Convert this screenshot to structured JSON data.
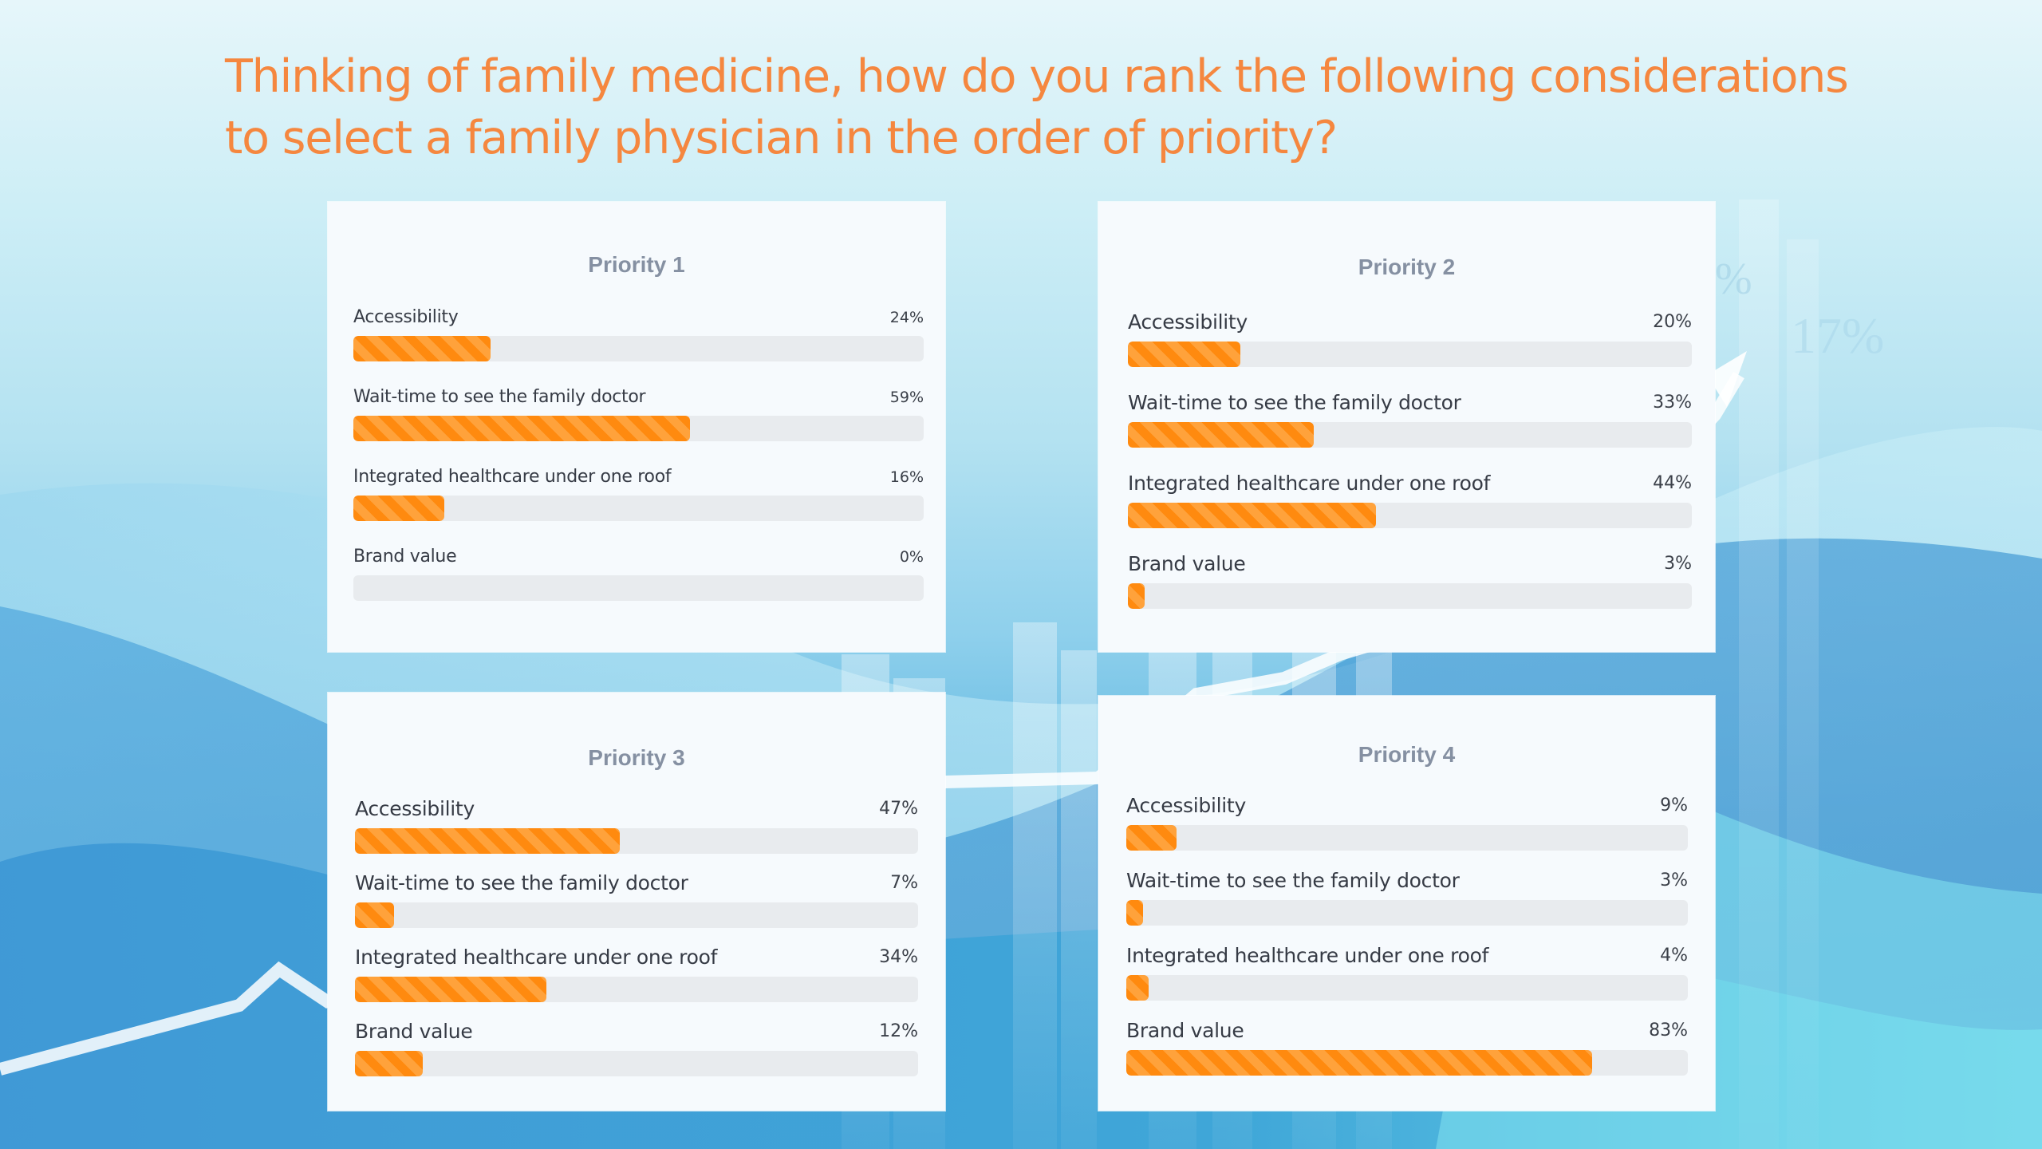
{
  "title": {
    "line1": "Thinking of family medicine, how do you rank the following considerations",
    "line2": "to select a family physician in the order of priority?"
  },
  "colors": {
    "title": "#f5873f",
    "bar_fill": "#ff8a0f",
    "bar_track": "#e8ebee",
    "card_bg": "#f6fafd",
    "card_heading": "#8590a2",
    "label_text": "#363b45"
  },
  "background": {
    "decorative_text": [
      "%",
      "17%"
    ]
  },
  "chart_data": [
    {
      "type": "bar",
      "orientation": "horizontal",
      "title": "Priority 1",
      "categories": [
        "Accessibility",
        "Wait-time to see the family doctor",
        "Integrated healthcare under one roof",
        "Brand value"
      ],
      "values": [
        24,
        59,
        16,
        0
      ],
      "value_labels": [
        "24%",
        "59%",
        "16%",
        "0%"
      ],
      "xlim": [
        0,
        100
      ],
      "unit": "%"
    },
    {
      "type": "bar",
      "orientation": "horizontal",
      "title": "Priority 2",
      "categories": [
        "Accessibility",
        "Wait-time to see the family doctor",
        "Integrated healthcare under one roof",
        "Brand value"
      ],
      "values": [
        20,
        33,
        44,
        3
      ],
      "value_labels": [
        "20%",
        "33%",
        "44%",
        "3%"
      ],
      "xlim": [
        0,
        100
      ],
      "unit": "%"
    },
    {
      "type": "bar",
      "orientation": "horizontal",
      "title": "Priority 3",
      "categories": [
        "Accessibility",
        "Wait-time to see the family doctor",
        "Integrated healthcare under one roof",
        "Brand value"
      ],
      "values": [
        47,
        7,
        34,
        12
      ],
      "value_labels": [
        "47%",
        "7%",
        "34%",
        "12%"
      ],
      "xlim": [
        0,
        100
      ],
      "unit": "%"
    },
    {
      "type": "bar",
      "orientation": "horizontal",
      "title": "Priority 4",
      "categories": [
        "Accessibility",
        "Wait-time to see the family doctor",
        "Integrated healthcare under one roof",
        "Brand value"
      ],
      "values": [
        9,
        3,
        4,
        83
      ],
      "value_labels": [
        "9%",
        "3%",
        "4%",
        "83%"
      ],
      "xlim": [
        0,
        100
      ],
      "unit": "%"
    }
  ]
}
